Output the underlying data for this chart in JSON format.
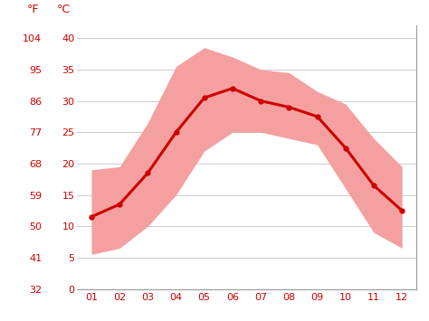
{
  "months": [
    1,
    2,
    3,
    4,
    5,
    6,
    7,
    8,
    9,
    10,
    11,
    12
  ],
  "month_labels": [
    "01",
    "02",
    "03",
    "04",
    "05",
    "06",
    "07",
    "08",
    "09",
    "10",
    "11",
    "12"
  ],
  "avg_temp_c": [
    11.5,
    13.5,
    18.5,
    25.0,
    30.5,
    32.0,
    30.0,
    29.0,
    27.5,
    22.5,
    16.5,
    12.5
  ],
  "max_temp_c": [
    19.0,
    19.5,
    26.5,
    35.5,
    38.5,
    37.0,
    35.0,
    34.5,
    31.5,
    29.5,
    24.0,
    19.5
  ],
  "min_temp_c": [
    5.5,
    6.5,
    10.0,
    15.0,
    22.0,
    25.0,
    25.0,
    24.0,
    23.0,
    16.0,
    9.0,
    6.5
  ],
  "yticks_c": [
    0,
    5,
    10,
    15,
    20,
    25,
    30,
    35,
    40
  ],
  "yticks_f": [
    32,
    41,
    50,
    59,
    68,
    77,
    86,
    95,
    104
  ],
  "line_color": "#cc0000",
  "band_color": "#f4a0a0",
  "bg_color": "#ffffff",
  "grid_color": "#cccccc",
  "label_color": "#cc0000",
  "ylim_c": [
    0,
    42
  ],
  "xlim": [
    0.5,
    12.5
  ],
  "tick_fontsize": 8,
  "header_fontsize": 9
}
